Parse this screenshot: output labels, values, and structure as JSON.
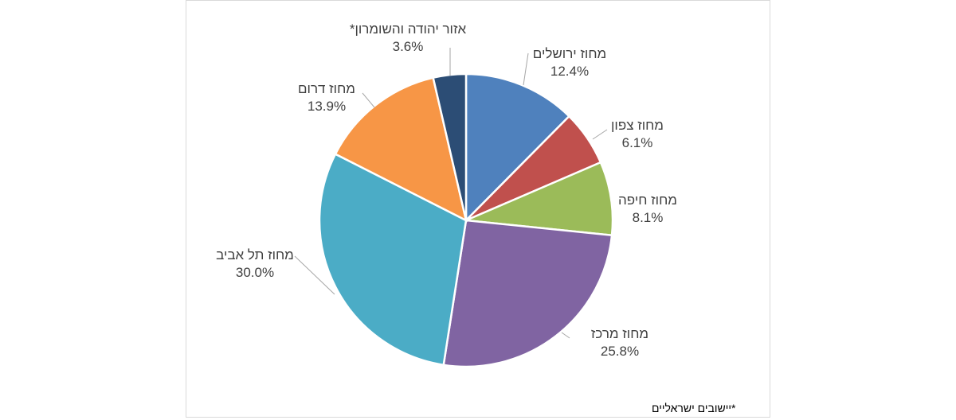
{
  "chart_data": {
    "type": "pie",
    "slices": [
      {
        "name": "מחוז ירושלים",
        "value": 12.4,
        "label": "12.4%",
        "color": "#4f81bd"
      },
      {
        "name": "מחוז צפון",
        "value": 6.1,
        "label": "6.1%",
        "color": "#c0504d"
      },
      {
        "name": "מחוז חיפה",
        "value": 8.1,
        "label": "8.1%",
        "color": "#9bbb59"
      },
      {
        "name": "מחוז מרכז",
        "value": 25.8,
        "label": "25.8%",
        "color": "#8064a2"
      },
      {
        "name": "מחוז תל אביב",
        "value": 30.0,
        "label": "30.0%",
        "color": "#4bacc6"
      },
      {
        "name": "מחוז דרום",
        "value": 13.9,
        "label": "13.9%",
        "color": "#f79646"
      },
      {
        "name": "אזור יהודה והשומרון*",
        "value": 3.6,
        "label": "3.6%",
        "color": "#2c4d75"
      }
    ],
    "start": "12 o'clock",
    "direction": "clockwise",
    "footnote": "*יישובים ישראליים"
  }
}
